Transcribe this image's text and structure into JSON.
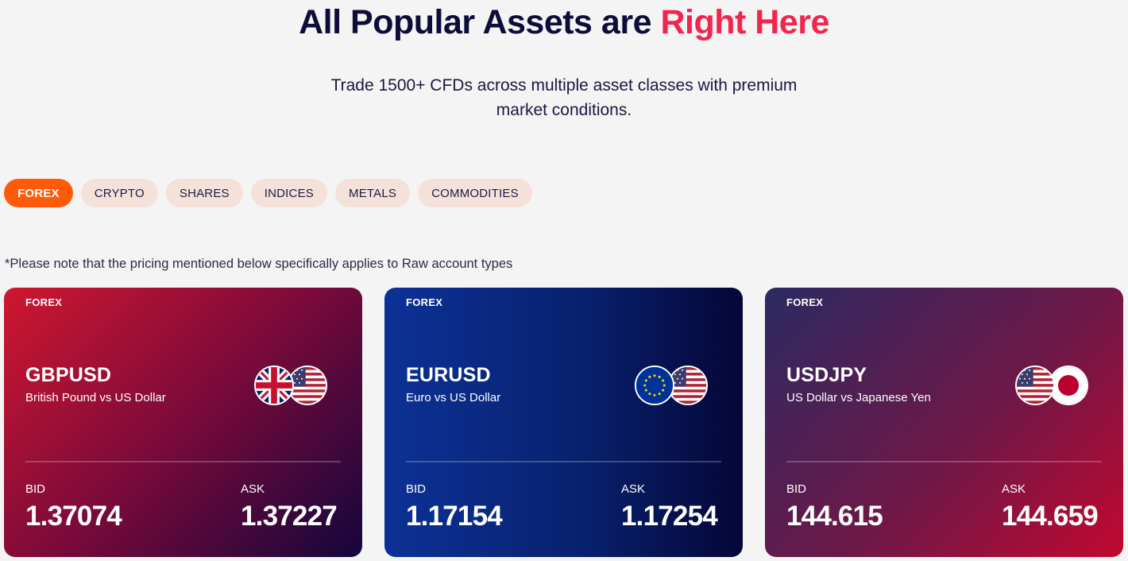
{
  "heading": {
    "part1": "All Popular Assets are ",
    "part2": "Right Here"
  },
  "subtitle": "Trade 1500+ CFDs across multiple asset classes with premium market conditions.",
  "tabs": [
    {
      "label": "FOREX",
      "active": true
    },
    {
      "label": "CRYPTO",
      "active": false
    },
    {
      "label": "SHARES",
      "active": false
    },
    {
      "label": "INDICES",
      "active": false
    },
    {
      "label": "METALS",
      "active": false
    },
    {
      "label": "COMMODITIES",
      "active": false
    }
  ],
  "note": "*Please note that the pricing mentioned below specifically applies to Raw account types",
  "cards": [
    {
      "category": "FOREX",
      "symbol": "GBPUSD",
      "name": "British Pound vs US Dollar",
      "bid_label": "BID",
      "bid": "1.37074",
      "ask_label": "ASK",
      "ask": "1.37227",
      "flags": [
        "uk-flag-icon",
        "us-flag-icon"
      ]
    },
    {
      "category": "FOREX",
      "symbol": "EURUSD",
      "name": "Euro vs US Dollar",
      "bid_label": "BID",
      "bid": "1.17154",
      "ask_label": "ASK",
      "ask": "1.17254",
      "flags": [
        "eu-flag-icon",
        "us-flag-icon"
      ]
    },
    {
      "category": "FOREX",
      "symbol": "USDJPY",
      "name": "US Dollar vs Japanese Yen",
      "bid_label": "BID",
      "bid": "144.615",
      "ask_label": "ASK",
      "ask": "144.659",
      "flags": [
        "us-flag-icon",
        "japan-flag-icon"
      ]
    }
  ],
  "colors": {
    "accent": "#f0264e",
    "active_tab": "#ff5a0a",
    "tab_bg": "#f4e2da",
    "heading": "#0e0d3a"
  }
}
